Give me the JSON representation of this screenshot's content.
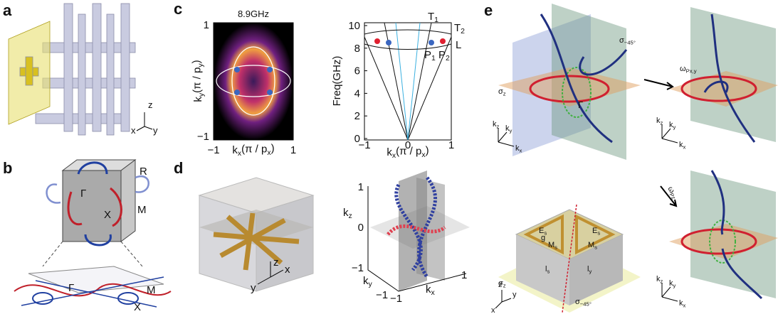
{
  "panel_a": {
    "label": "a",
    "axes": [
      "z",
      "x",
      "y"
    ]
  },
  "panel_b": {
    "label": "b",
    "cube_labels": [
      "R",
      "Γ",
      "X",
      "M"
    ],
    "net_labels": [
      "Γ",
      "M",
      "X"
    ]
  },
  "panel_c": {
    "label": "c",
    "left": {
      "title": "8.9GHz",
      "ylabel": [
        "k",
        "y",
        "(π / p",
        "y",
        ")"
      ],
      "xlabel": [
        "k",
        "x",
        "(π / p",
        "x",
        ")"
      ],
      "yticks": [
        "1",
        "−1"
      ],
      "xticks": [
        "−1",
        "1"
      ]
    },
    "right": {
      "ylabel": "Freq(GHz)",
      "xlabel": [
        "k",
        "x",
        "(π / p",
        "x",
        ")"
      ],
      "yticks": [
        "10",
        "8",
        "6",
        "4",
        "2",
        "0"
      ],
      "xticks": [
        "−1",
        "0",
        "1"
      ],
      "band_labels": [
        [
          "T",
          "1"
        ],
        [
          "T",
          "2"
        ],
        "L",
        [
          "P",
          "1"
        ],
        [
          "P",
          "2"
        ]
      ]
    }
  },
  "panel_d": {
    "label": "d",
    "left_axes": [
      "y",
      "z",
      "x"
    ],
    "right": {
      "zlabel": [
        "k",
        "z"
      ],
      "zticks": [
        "1",
        "0",
        "−1"
      ],
      "ylabel": [
        "k",
        "y"
      ],
      "yticks": [
        "−1"
      ],
      "xlabel": [
        "k",
        "x"
      ],
      "xticks": [
        "−1",
        "1"
      ]
    }
  },
  "panel_e": {
    "label": "e",
    "sigma_45": [
      "σ",
      "−45°"
    ],
    "sigma_z": [
      "σ",
      "z"
    ],
    "gamma": "Γ",
    "omega_pxy": [
      "ω",
      "Px,y"
    ],
    "omega_pz": [
      "ω",
      "Pz"
    ],
    "k_axes": [
      [
        "k",
        "z"
      ],
      [
        "k",
        "y"
      ],
      [
        "k",
        "x"
      ]
    ],
    "lower_left": {
      "sigma_z": [
        "σ",
        "z"
      ],
      "E_left": [
        "E",
        "s"
      ],
      "g": "g",
      "M_left": [
        "M",
        "s"
      ],
      "M_right": [
        "M",
        "s"
      ],
      "E_right": [
        "E",
        "s"
      ],
      "l_left": [
        "l",
        "s"
      ],
      "l_right": [
        "l",
        "y"
      ],
      "sigma_45": [
        "σ",
        "−45°"
      ],
      "axes": [
        "z",
        "y",
        "x"
      ]
    }
  }
}
